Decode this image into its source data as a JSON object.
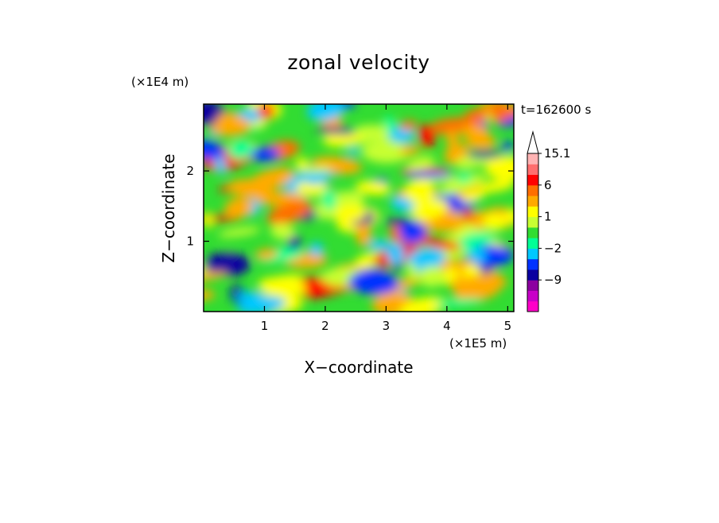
{
  "chart_data": {
    "type": "heatmap",
    "title": "zonal velocity",
    "xlabel": "X−coordinate",
    "ylabel": "Z−coordinate",
    "x_scale_label": "(×1E5 m)",
    "y_scale_label": "(×1E4 m)",
    "time_label": "t=162600 s",
    "xlim": [
      0.0,
      5.1
    ],
    "ylim": [
      0.0,
      2.95
    ],
    "x_ticks": [
      1,
      2,
      3,
      4,
      5
    ],
    "y_ticks": [
      1,
      2
    ],
    "colorbar": {
      "levels": [
        -15,
        -12,
        -9,
        -6,
        -4,
        -2,
        -1,
        0,
        1,
        2,
        4,
        6,
        9,
        12,
        15.1
      ],
      "labeled": [
        "15.1",
        "6",
        "1",
        "−2",
        "−9"
      ],
      "colors": [
        "#ff00c8",
        "#c800c8",
        "#8c00a0",
        "#0a00a0",
        "#0032ff",
        "#00c8ff",
        "#00ff96",
        "#32dc32",
        "#c8ff32",
        "#ffff00",
        "#ffaa00",
        "#ff6e00",
        "#ff0000",
        "#ff6e6e",
        "#ffb4b4"
      ],
      "extend_top": true
    }
  }
}
